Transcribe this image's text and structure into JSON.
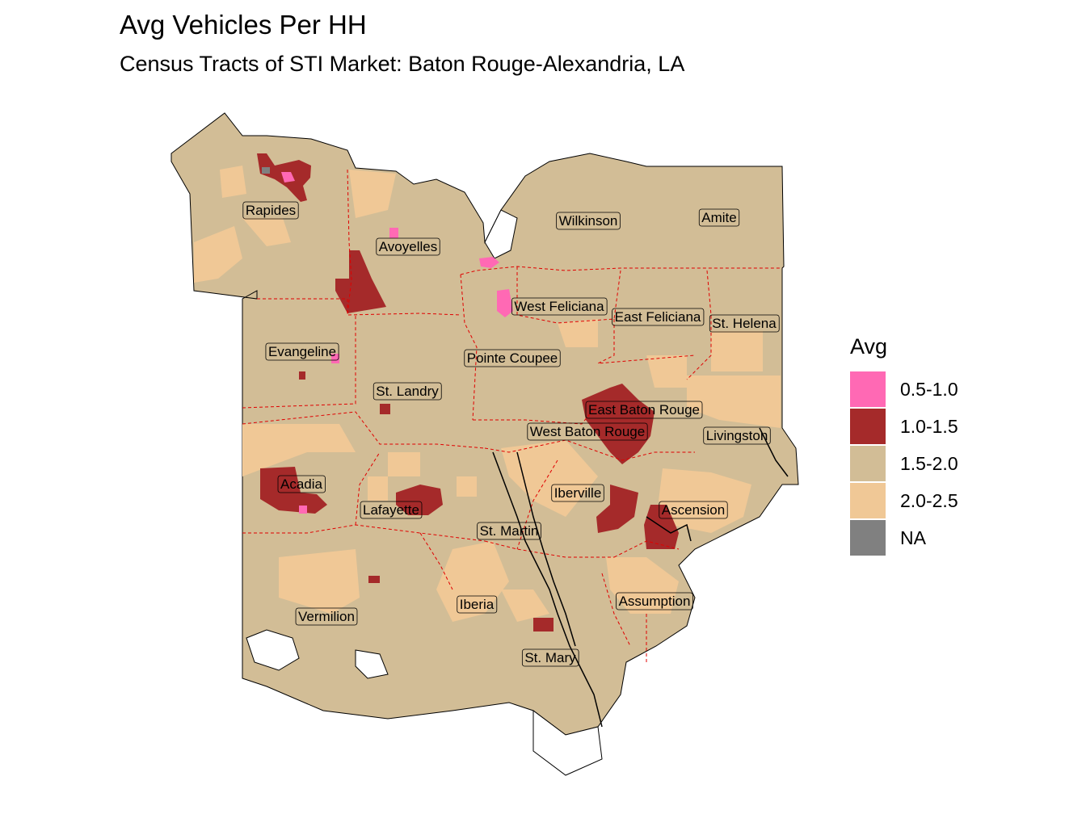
{
  "title": "Avg Vehicles Per HH",
  "subtitle": "Census Tracts of STI Market: Baton Rouge-Alexandria, LA",
  "legend": {
    "title": "Avg",
    "items": [
      {
        "label": "0.5-1.0",
        "color": "#FF69B4"
      },
      {
        "label": "1.0-1.5",
        "color": "#A52A2A"
      },
      {
        "label": "1.5-2.0",
        "color": "#D2BD96"
      },
      {
        "label": "2.0-2.5",
        "color": "#F0C896"
      },
      {
        "label": "NA",
        "color": "#808080"
      }
    ]
  },
  "counties": [
    "Rapides",
    "Avoyelles",
    "Wilkinson",
    "Amite",
    "West Feliciana",
    "East Feliciana",
    "St. Helena",
    "Evangeline",
    "Pointe Coupee",
    "St. Landry",
    "East Baton Rouge",
    "West Baton Rouge",
    "Livingston",
    "Acadia",
    "Lafayette",
    "Iberville",
    "Ascension",
    "St. Martin",
    "Assumption",
    "Iberia",
    "Vermilion",
    "St. Mary"
  ]
}
